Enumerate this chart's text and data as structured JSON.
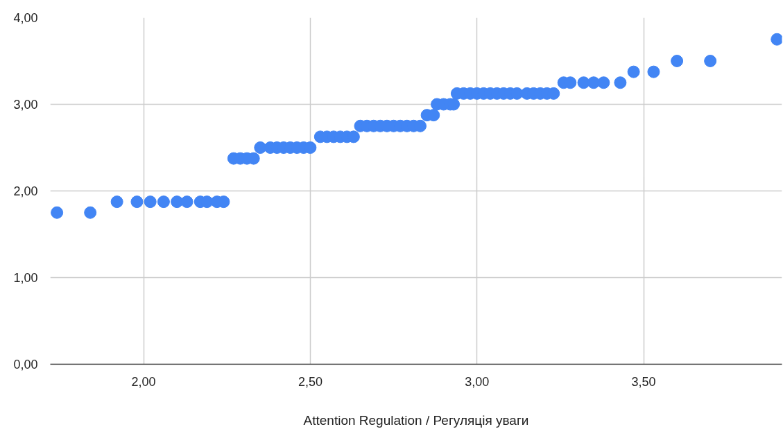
{
  "chart_data": {
    "type": "scatter",
    "xlabel": "Attention Regulation / Регуляція уваги",
    "x": [
      1.74,
      1.84,
      1.92,
      1.98,
      2.02,
      2.06,
      2.1,
      2.13,
      2.17,
      2.19,
      2.22,
      2.24,
      2.27,
      2.29,
      2.31,
      2.33,
      2.35,
      2.38,
      2.4,
      2.42,
      2.44,
      2.46,
      2.48,
      2.5,
      2.53,
      2.55,
      2.57,
      2.59,
      2.61,
      2.63,
      2.65,
      2.67,
      2.69,
      2.71,
      2.73,
      2.75,
      2.77,
      2.79,
      2.81,
      2.83,
      2.85,
      2.87,
      2.88,
      2.9,
      2.92,
      2.93,
      2.94,
      2.96,
      2.98,
      3.0,
      3.02,
      3.04,
      3.06,
      3.08,
      3.1,
      3.12,
      3.15,
      3.17,
      3.19,
      3.21,
      3.23,
      3.26,
      3.28,
      3.32,
      3.35,
      3.38,
      3.43,
      3.47,
      3.53,
      3.6,
      3.7,
      3.9
    ],
    "series": [
      {
        "color": "#4285f4",
        "values": [
          1.75,
          1.75,
          1.875,
          1.875,
          1.875,
          1.875,
          1.875,
          1.875,
          1.875,
          1.875,
          1.875,
          1.875,
          2.375,
          2.375,
          2.375,
          2.375,
          2.5,
          2.5,
          2.5,
          2.5,
          2.5,
          2.5,
          2.5,
          2.5,
          2.625,
          2.625,
          2.625,
          2.625,
          2.625,
          2.625,
          2.75,
          2.75,
          2.75,
          2.75,
          2.75,
          2.75,
          2.75,
          2.75,
          2.75,
          2.75,
          2.875,
          2.875,
          3.0,
          3.0,
          3.0,
          3.0,
          3.125,
          3.125,
          3.125,
          3.125,
          3.125,
          3.125,
          3.125,
          3.125,
          3.125,
          3.125,
          3.125,
          3.125,
          3.125,
          3.125,
          3.125,
          3.25,
          3.25,
          3.25,
          3.25,
          3.25,
          3.25,
          3.375,
          3.375,
          3.5,
          3.5,
          3.75
        ]
      }
    ],
    "xlim": [
      1.72,
      3.915
    ],
    "ylim": [
      0,
      4
    ],
    "xticks": [
      {
        "value": 2,
        "label": "2,00"
      },
      {
        "value": 2.5,
        "label": "2,50"
      },
      {
        "value": 3,
        "label": "3,00"
      },
      {
        "value": 3.5,
        "label": "3,50"
      }
    ],
    "yticks": [
      {
        "value": 0,
        "label": "0,00"
      },
      {
        "value": 1,
        "label": "1,00"
      },
      {
        "value": 2,
        "label": "2,00"
      },
      {
        "value": 3,
        "label": "3,00"
      },
      {
        "value": 4,
        "label": "4,00"
      }
    ],
    "grid": true,
    "marker": "circle"
  }
}
